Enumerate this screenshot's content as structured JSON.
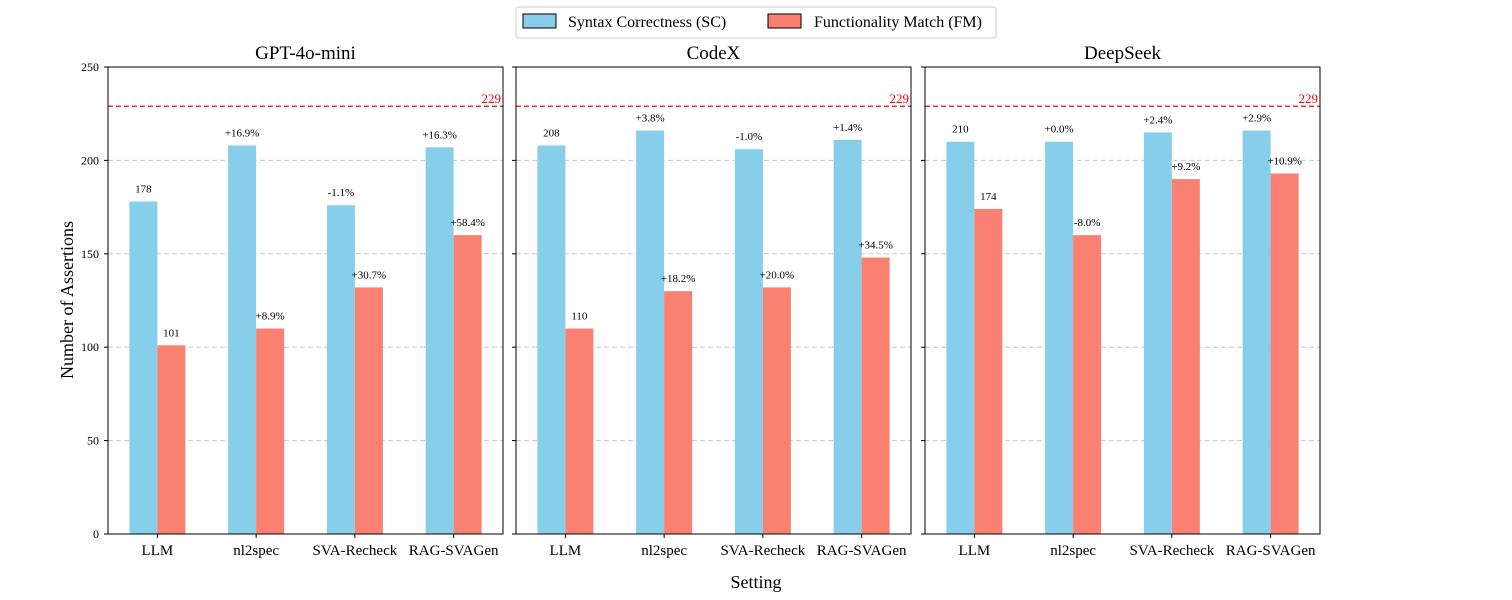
{
  "figure": {
    "xlabel": "Setting",
    "ylabel": "Number of Assertions"
  },
  "legend": {
    "placement": "top-center",
    "entries": [
      {
        "label": "Syntax Correctness (SC)",
        "color": "#87CEEB"
      },
      {
        "label": "Functionality Match (FM)",
        "color": "#FA8072"
      }
    ]
  },
  "reference_line": {
    "value": 229,
    "label": "229",
    "color": "#FF0000",
    "style": "dashed"
  },
  "chart_data": [
    {
      "type": "bar",
      "title": "GPT-4o-mini",
      "categories": [
        "LLM",
        "nl2spec",
        "SVA-Recheck",
        "RAG-SVAGen"
      ],
      "ylim": [
        0,
        250
      ],
      "yticks": [
        0,
        50,
        100,
        150,
        200,
        250
      ],
      "grid": true,
      "series": [
        {
          "name": "Syntax Correctness (SC)",
          "values": [
            178,
            208,
            176,
            207
          ],
          "labels": [
            "178",
            "+16.9%",
            "-1.1%",
            "+16.3%"
          ]
        },
        {
          "name": "Functionality Match (FM)",
          "values": [
            101,
            110,
            132,
            160
          ],
          "labels": [
            "101",
            "+8.9%",
            "+30.7%",
            "+58.4%"
          ]
        }
      ]
    },
    {
      "type": "bar",
      "title": "CodeX",
      "categories": [
        "LLM",
        "nl2spec",
        "SVA-Recheck",
        "RAG-SVAGen"
      ],
      "ylim": [
        0,
        250
      ],
      "yticks": [
        0,
        50,
        100,
        150,
        200,
        250
      ],
      "grid": true,
      "series": [
        {
          "name": "Syntax Correctness (SC)",
          "values": [
            208,
            216,
            206,
            211
          ],
          "labels": [
            "208",
            "+3.8%",
            "-1.0%",
            "+1.4%"
          ]
        },
        {
          "name": "Functionality Match (FM)",
          "values": [
            110,
            130,
            132,
            148
          ],
          "labels": [
            "110",
            "+18.2%",
            "+20.0%",
            "+34.5%"
          ]
        }
      ]
    },
    {
      "type": "bar",
      "title": "DeepSeek",
      "categories": [
        "LLM",
        "nl2spec",
        "SVA-Recheck",
        "RAG-SVAGen"
      ],
      "ylim": [
        0,
        250
      ],
      "yticks": [
        0,
        50,
        100,
        150,
        200,
        250
      ],
      "grid": true,
      "series": [
        {
          "name": "Syntax Correctness (SC)",
          "values": [
            210,
            210,
            215,
            216
          ],
          "labels": [
            "210",
            "+0.0%",
            "+2.4%",
            "+2.9%"
          ]
        },
        {
          "name": "Functionality Match (FM)",
          "values": [
            174,
            160,
            190,
            193
          ],
          "labels": [
            "174",
            "-8.0%",
            "+9.2%",
            "+10.9%"
          ]
        }
      ]
    }
  ]
}
